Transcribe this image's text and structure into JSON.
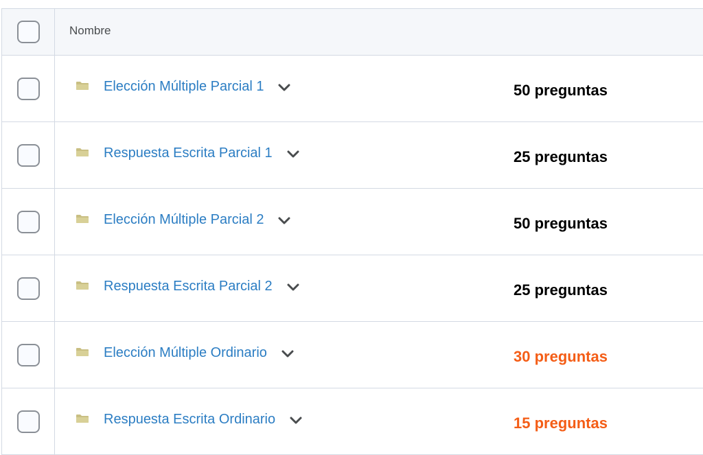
{
  "header": {
    "name_label": "Nombre"
  },
  "colors": {
    "link": "#2b7dc3",
    "warning": "#f45d16",
    "normal": "#000000"
  },
  "rows": [
    {
      "name": "Elección Múltiple Parcial 1",
      "count": "50 preguntas",
      "highlight": false
    },
    {
      "name": "Respuesta Escrita Parcial 1",
      "count": "25 preguntas",
      "highlight": false
    },
    {
      "name": "Elección Múltiple Parcial 2",
      "count": "50 preguntas",
      "highlight": false
    },
    {
      "name": "Respuesta Escrita Parcial 2",
      "count": "25 preguntas",
      "highlight": false
    },
    {
      "name": "Elección Múltiple Ordinario",
      "count": "30 preguntas",
      "highlight": true
    },
    {
      "name": "Respuesta Escrita Ordinario",
      "count": "15 preguntas",
      "highlight": true
    }
  ]
}
